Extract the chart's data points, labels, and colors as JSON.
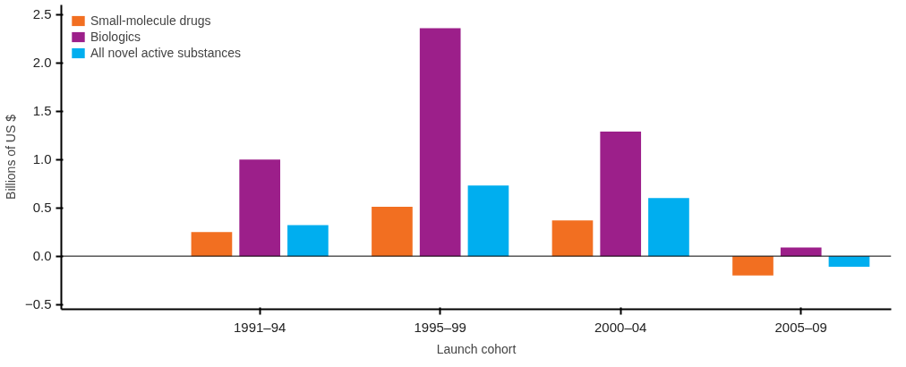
{
  "chart_data": {
    "type": "bar",
    "xlabel": "Launch cohort",
    "ylabel": "Billions of US $",
    "categories": [
      "1991–94",
      "1995–99",
      "2000–04",
      "2005–09"
    ],
    "series": [
      {
        "name": "Small-molecule drugs",
        "color": "#f26f21",
        "values": [
          0.25,
          0.51,
          0.37,
          -0.2
        ]
      },
      {
        "name": "Biologics",
        "color": "#9c1f8a",
        "values": [
          1.0,
          2.36,
          1.29,
          0.09
        ]
      },
      {
        "name": "All novel active substances",
        "color": "#00aeef",
        "values": [
          0.32,
          0.73,
          0.6,
          -0.11
        ]
      }
    ],
    "ylim": [
      -0.55,
      2.6
    ],
    "yticks": [
      {
        "value": -0.5,
        "label": "−0.5"
      },
      {
        "value": 0,
        "label": "0.0"
      },
      {
        "value": 0.5,
        "label": "0.5"
      },
      {
        "value": 1,
        "label": "1.0"
      },
      {
        "value": 1.5,
        "label": "1.5"
      },
      {
        "value": 2,
        "label": "2.0"
      },
      {
        "value": 2.5,
        "label": "2.5"
      }
    ],
    "ref_lines": [
      {
        "axis": "y",
        "value": 0,
        "color": "#000000"
      }
    ],
    "grid": false,
    "legend": "top left"
  }
}
